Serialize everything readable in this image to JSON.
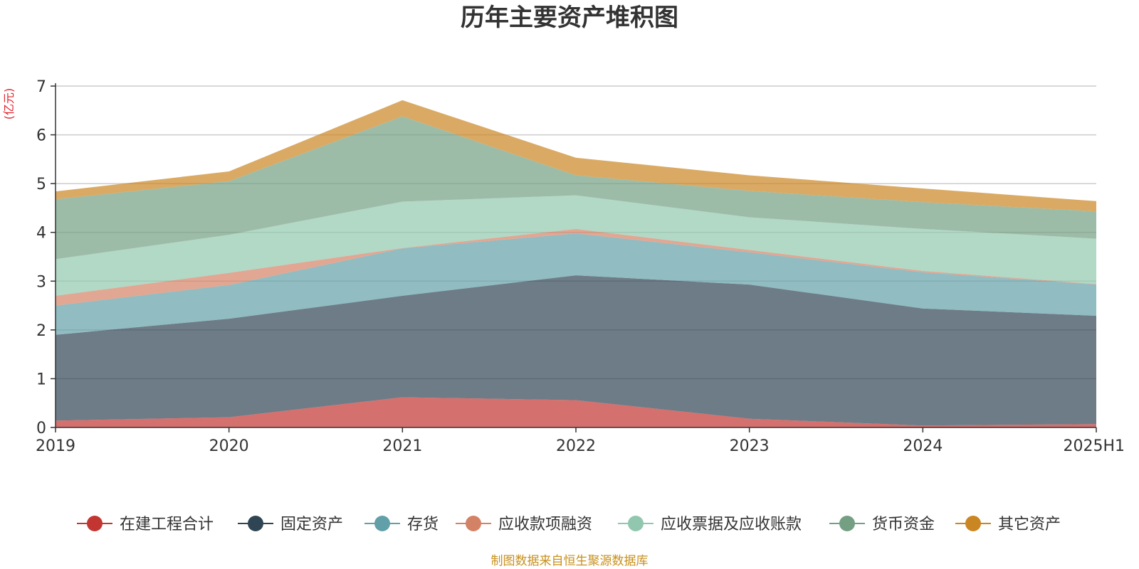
{
  "chart_data": {
    "type": "area",
    "stacked": true,
    "title": "历年主要资产堆积图",
    "ylabel": "(亿元)",
    "xlabel": "",
    "categories": [
      "2019",
      "2020",
      "2021",
      "2022",
      "2023",
      "2024",
      "2025H1"
    ],
    "ylim": [
      0,
      7
    ],
    "yticks": [
      0,
      1,
      2,
      3,
      4,
      5,
      6,
      7
    ],
    "grid": true,
    "legend_position": "bottom",
    "series": [
      {
        "name": "在建工程合计",
        "color": "#c23531",
        "values": [
          0.14,
          0.21,
          0.62,
          0.56,
          0.18,
          0.04,
          0.07
        ]
      },
      {
        "name": "固定资产",
        "color": "#2f4554",
        "values": [
          1.76,
          2.02,
          2.08,
          2.56,
          2.75,
          2.4,
          2.22
        ]
      },
      {
        "name": "存货",
        "color": "#61a0a8",
        "values": [
          0.6,
          0.69,
          0.97,
          0.86,
          0.66,
          0.74,
          0.64
        ]
      },
      {
        "name": "应收款项融资",
        "color": "#d48265",
        "values": [
          0.2,
          0.25,
          0.01,
          0.09,
          0.05,
          0.03,
          0.01
        ]
      },
      {
        "name": "应收票据及应收账款",
        "color": "#91c7ae",
        "values": [
          0.75,
          0.78,
          0.95,
          0.69,
          0.67,
          0.86,
          0.93
        ]
      },
      {
        "name": "货币资金",
        "color": "#749f83",
        "values": [
          1.23,
          1.1,
          1.75,
          0.41,
          0.54,
          0.55,
          0.56
        ]
      },
      {
        "name": "其它资产",
        "color": "#ca8622",
        "values": [
          0.16,
          0.2,
          0.33,
          0.36,
          0.32,
          0.28,
          0.21
        ]
      }
    ]
  },
  "unit_label": "(亿元)",
  "source_text": "制图数据来自恒生聚源数据库",
  "colors": {
    "unit": "#e0212e",
    "source": "#c8901a",
    "axis": "#333333",
    "grid": "#cccccc"
  }
}
